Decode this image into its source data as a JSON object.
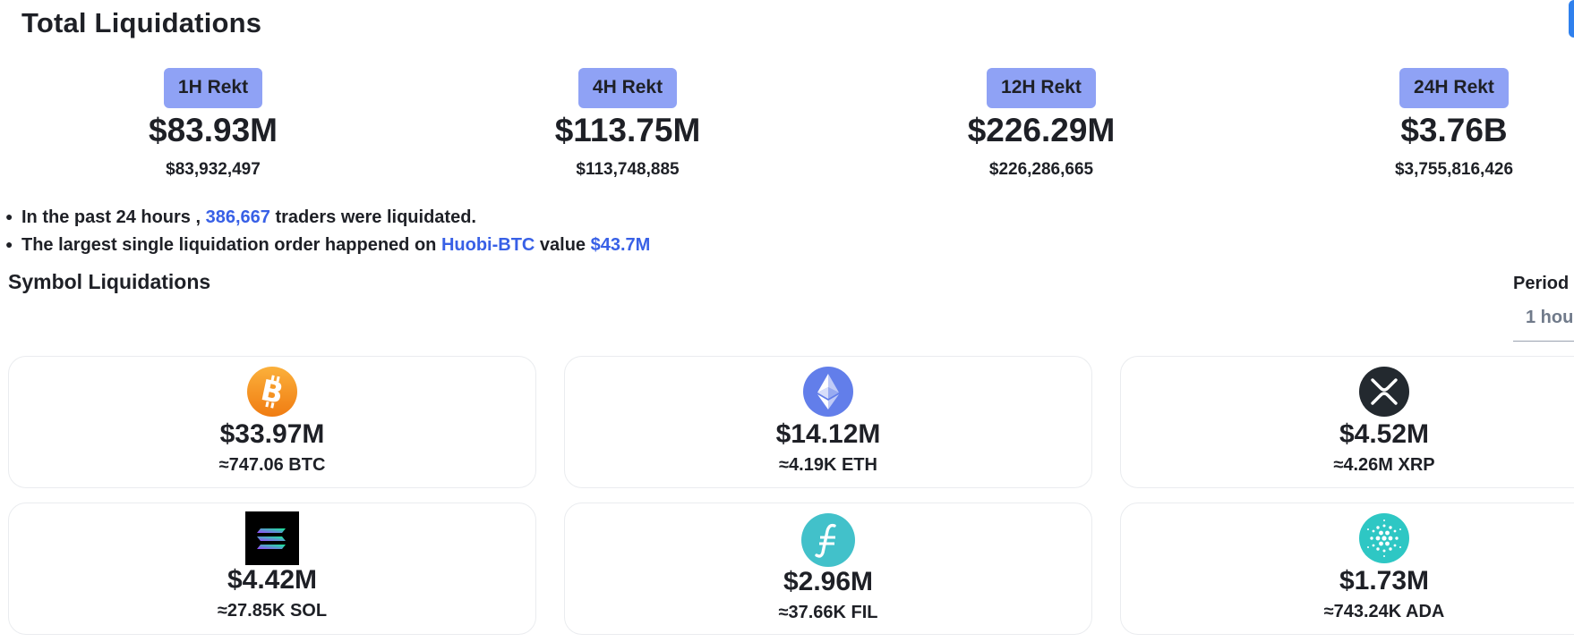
{
  "page": {
    "title": "Total Liquidations"
  },
  "stats": [
    {
      "badge": "1H Rekt",
      "value": "$83.93M",
      "exact": "$83,932,497"
    },
    {
      "badge": "4H Rekt",
      "value": "$113.75M",
      "exact": "$113,748,885"
    },
    {
      "badge": "12H Rekt",
      "value": "$226.29M",
      "exact": "$226,286,665"
    },
    {
      "badge": "24H Rekt",
      "value": "$3.76B",
      "exact": "$3,755,816,426"
    }
  ],
  "facts": {
    "line1": {
      "prefix": "In the past 24 hours , ",
      "count": "386,667",
      "suffix": " traders were liquidated."
    },
    "line2": {
      "prefix": "The largest single liquidation order happened on ",
      "exchange": "Huobi-BTC",
      "middle": " value ",
      "value": "$43.7M"
    }
  },
  "symbols": {
    "title": "Symbol Liquidations",
    "period_label": "Period",
    "period_value": "1 hou",
    "cards": [
      {
        "icon": "bitcoin-icon",
        "value": "$33.97M",
        "amount": "≈747.06 BTC",
        "color": "#f7931a"
      },
      {
        "icon": "ethereum-icon",
        "value": "$14.12M",
        "amount": "≈4.19K ETH",
        "color": "#627eea"
      },
      {
        "icon": "xrp-icon",
        "value": "$4.52M",
        "amount": "≈4.26M XRP",
        "color": "#23292f"
      },
      {
        "icon": "solana-icon",
        "value": "$4.42M",
        "amount": "≈27.85K SOL",
        "color": "#000000"
      },
      {
        "icon": "filecoin-icon",
        "value": "$2.96M",
        "amount": "≈37.66K FIL",
        "color": "#42c1ca"
      },
      {
        "icon": "cardano-icon",
        "value": "$1.73M",
        "amount": "≈743.24K ADA",
        "color": "#2ec7c4"
      }
    ]
  },
  "colors": {
    "accent": "#3860e6",
    "badge": "#8fa2f5",
    "text": "#1e2026"
  }
}
